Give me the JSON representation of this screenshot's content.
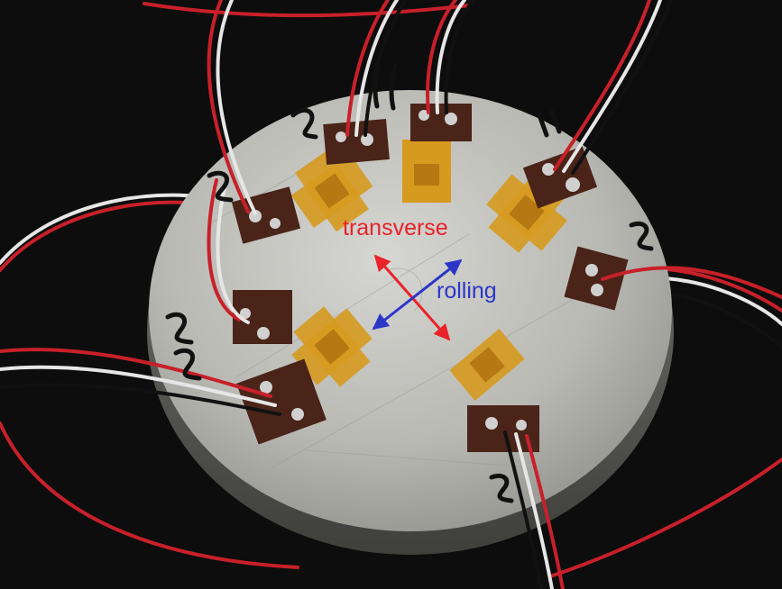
{
  "annotations": {
    "transverse": {
      "text": "transverse",
      "color": "#e8232a"
    },
    "rolling": {
      "text": "rolling",
      "color": "#2b36c9"
    }
  },
  "palette": {
    "background": "#0d0d0d",
    "disk_metal": "#bdbdb8",
    "kapton_film": "#d69a1f",
    "pcb_terminal": "#4a2418",
    "wire_red": "#c8202a",
    "wire_white": "#e6e6e6",
    "wire_black": "#111111",
    "marker_ink": "#111111"
  },
  "handwritten_marks": [
    "1",
    "11",
    "12",
    "2",
    "21",
    "22",
    "23"
  ]
}
